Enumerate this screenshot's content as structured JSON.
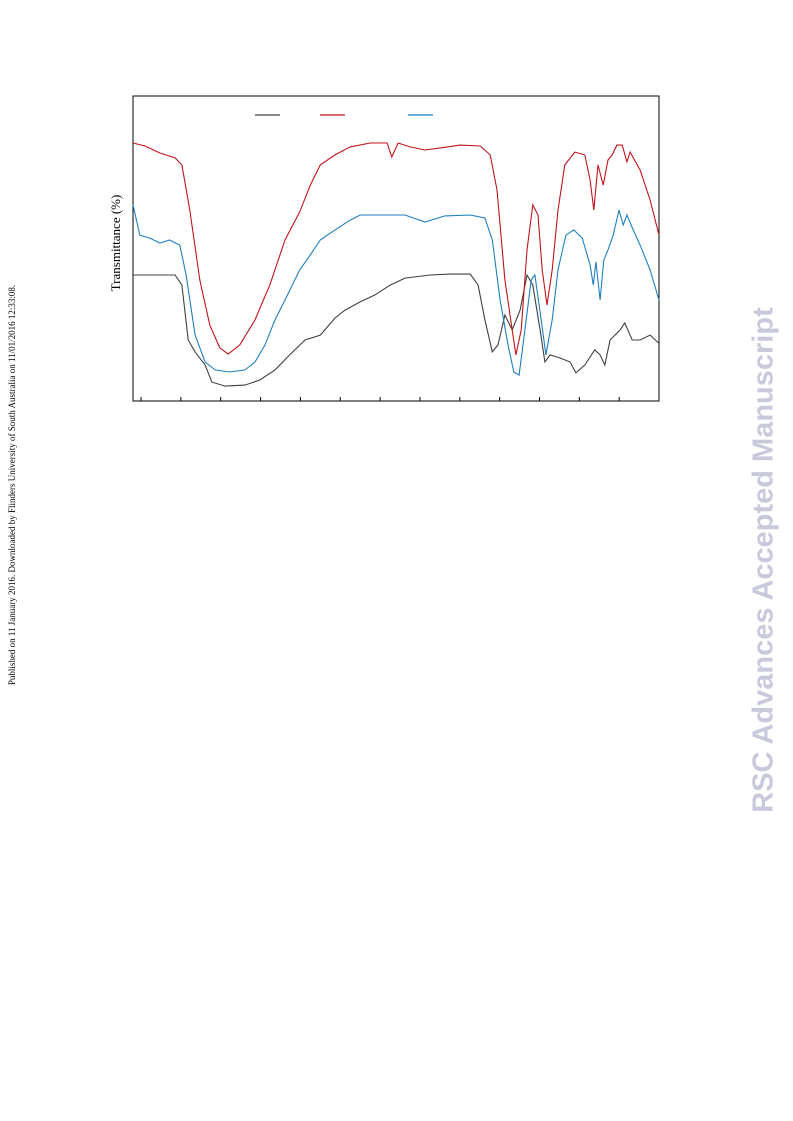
{
  "side_note": "Published on 11 January 2016. Downloaded by Flinders University of South Australia on 11/01/2016 12:33:08.",
  "watermark": "RSC Advances Accepted Manuscript",
  "chart_data": {
    "type": "line",
    "y_label": "Transmittance (%)",
    "xlim": [
      0,
      100
    ],
    "ylim": [
      0,
      100
    ],
    "series": [
      {
        "color": "#404040",
        "x": [
          0,
          8.0,
          9.3,
          10.5,
          11.8,
          13.7,
          15.0,
          17.5,
          21.3,
          24.1,
          27.0,
          29.8,
          32.7,
          35.6,
          38.4,
          40.3,
          43.2,
          46.0,
          48.9,
          51.7,
          56.5,
          60.3,
          64.1,
          65.6,
          66.9,
          68.3,
          69.4,
          70.7,
          72.1,
          73.6,
          74.9,
          76.0,
          77.4,
          78.3,
          79.3,
          81.2,
          83.1,
          84.2,
          85.9,
          87.8,
          88.8,
          89.7,
          90.7,
          92.6,
          93.5,
          94.9,
          96.4,
          98.3,
          100
        ],
        "values": [
          41.3,
          41.3,
          38.0,
          20.0,
          16.1,
          11.8,
          6.2,
          4.9,
          5.2,
          6.9,
          10.2,
          15.1,
          20.0,
          21.6,
          27.2,
          29.8,
          32.5,
          34.8,
          38.0,
          40.3,
          41.3,
          41.6,
          41.6,
          38.0,
          26.6,
          16.1,
          18.4,
          28.2,
          23.3,
          29.8,
          41.3,
          38.0,
          23.3,
          12.8,
          15.1,
          14.1,
          12.8,
          9.2,
          11.8,
          16.8,
          15.1,
          11.8,
          20.0,
          23.3,
          25.6,
          20.0,
          20.0,
          21.6,
          18.9
        ]
      },
      {
        "color": "#c0141c",
        "x": [
          0,
          2.3,
          5.1,
          8.0,
          9.3,
          10.8,
          12.7,
          14.6,
          16.5,
          18.1,
          20.3,
          23.2,
          26.0,
          28.9,
          31.7,
          33.7,
          35.6,
          38.4,
          41.3,
          45.1,
          48.3,
          49.2,
          50.4,
          52.7,
          55.5,
          58.4,
          62.2,
          66.0,
          67.9,
          69.2,
          70.7,
          72.1,
          72.8,
          73.8,
          74.9,
          76.0,
          77.0,
          77.8,
          78.7,
          79.7,
          80.8,
          82.1,
          84.0,
          85.9,
          86.9,
          87.6,
          88.4,
          89.4,
          90.3,
          91.1,
          92.0,
          93.0,
          93.9,
          94.5,
          96.4,
          98.3,
          100
        ],
        "values": [
          84.6,
          83.6,
          81.3,
          79.7,
          77.4,
          62.6,
          39.7,
          24.9,
          17.4,
          15.4,
          18.4,
          26.6,
          38.0,
          52.8,
          62.0,
          70.8,
          77.4,
          80.7,
          83.3,
          84.6,
          84.6,
          80.0,
          84.6,
          83.3,
          82.3,
          83.0,
          83.9,
          83.6,
          80.7,
          69.2,
          39.7,
          23.3,
          15.1,
          23.3,
          49.5,
          64.3,
          61.0,
          43.0,
          31.5,
          43.0,
          62.6,
          77.4,
          81.6,
          80.7,
          72.5,
          62.6,
          77.4,
          70.8,
          79.0,
          80.7,
          83.9,
          83.9,
          78.4,
          81.6,
          75.7,
          65.9,
          54.4
        ]
      },
      {
        "color": "#1f7fc0",
        "x": [
          0,
          1.3,
          3.2,
          5.1,
          7.0,
          8.9,
          10.1,
          11.8,
          13.7,
          15.6,
          18.4,
          21.3,
          23.2,
          25.1,
          27.0,
          28.9,
          31.7,
          33.7,
          35.6,
          38.4,
          41.3,
          43.2,
          47.0,
          51.7,
          55.5,
          59.3,
          64.1,
          66.9,
          68.3,
          69.8,
          71.3,
          72.4,
          73.4,
          74.5,
          75.7,
          76.4,
          77.6,
          78.5,
          79.7,
          80.8,
          82.3,
          83.8,
          85.4,
          86.9,
          87.5,
          88.0,
          88.8,
          89.5,
          90.3,
          91.3,
          92.4,
          93.2,
          93.9,
          95.1,
          96.4,
          98.3,
          100
        ],
        "values": [
          64.3,
          54.4,
          53.4,
          51.8,
          52.8,
          51.1,
          41.3,
          21.6,
          12.8,
          10.2,
          9.5,
          10.2,
          12.8,
          18.4,
          26.6,
          33.1,
          43.0,
          47.9,
          52.8,
          56.1,
          59.3,
          61.0,
          61.0,
          61.0,
          58.7,
          60.7,
          61.0,
          60.0,
          52.8,
          33.1,
          18.4,
          9.5,
          8.5,
          23.3,
          39.7,
          41.3,
          26.6,
          15.1,
          26.6,
          43.0,
          54.4,
          56.1,
          53.4,
          44.6,
          38.0,
          45.6,
          33.1,
          46.2,
          49.5,
          54.4,
          62.6,
          57.7,
          61.0,
          56.1,
          51.1,
          43.0,
          33.1
        ]
      }
    ]
  }
}
